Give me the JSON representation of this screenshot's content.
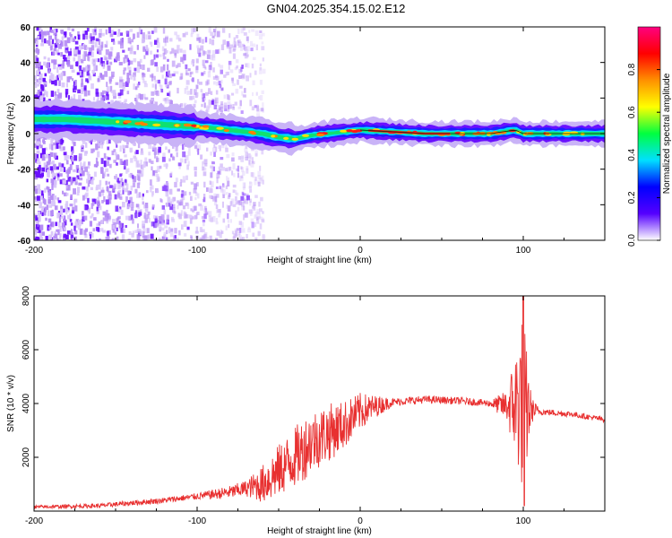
{
  "title": "GN04.2025.354.15.02.E12",
  "chart_data": [
    {
      "type": "heatmap",
      "name": "spectrogram",
      "xlabel": "Height of straight line (km)",
      "ylabel": "Frequency (Hz)",
      "xlim": [
        -200,
        150
      ],
      "ylim": [
        -60,
        60
      ],
      "xticks": [
        -200,
        -100,
        0,
        100
      ],
      "yticks": [
        60,
        40,
        20,
        0,
        -20,
        -40,
        -60
      ],
      "colorbar": {
        "label": "Normalized spectral amplitude",
        "range": [
          0,
          1
        ],
        "ticks": [
          0.0,
          0.2,
          0.4,
          0.6,
          0.8
        ],
        "tick_labels": [
          "0.0",
          "0.2",
          "0.4",
          "0.6",
          "0.8"
        ],
        "colors": [
          "#ffffff",
          "#5500ff",
          "#0000ff",
          "#00e0ff",
          "#00ff40",
          "#ffff00",
          "#ff9000",
          "#ff0000",
          "#ff0080"
        ]
      },
      "ridge_center_hz": [
        [
          -200,
          8
        ],
        [
          -180,
          8
        ],
        [
          -160,
          7
        ],
        [
          -140,
          6
        ],
        [
          -120,
          5
        ],
        [
          -100,
          4
        ],
        [
          -80,
          2
        ],
        [
          -60,
          0
        ],
        [
          -50,
          -2
        ],
        [
          -40,
          -3
        ],
        [
          -30,
          -1
        ],
        [
          -20,
          0
        ],
        [
          -10,
          1
        ],
        [
          0,
          2
        ],
        [
          20,
          1
        ],
        [
          40,
          0
        ],
        [
          60,
          0
        ],
        [
          80,
          0
        ],
        [
          95,
          2
        ],
        [
          100,
          0
        ],
        [
          120,
          0
        ],
        [
          150,
          0
        ]
      ],
      "noise_region_km": [
        -200,
        -60
      ]
    },
    {
      "type": "line",
      "name": "snr",
      "xlabel": "Height of straight line (km)",
      "ylabel": "SNR (10 * v/v)",
      "xlim": [
        -200,
        150
      ],
      "ylim": [
        0,
        8000
      ],
      "xticks": [
        -200,
        -100,
        0,
        100
      ],
      "yticks": [
        2000,
        4000,
        6000,
        8000
      ],
      "series": [
        {
          "name": "SNR",
          "color": "#e83030",
          "envelope": [
            [
              -200,
              150
            ],
            [
              -160,
              200
            ],
            [
              -120,
              400
            ],
            [
              -80,
              700
            ],
            [
              -60,
              1000
            ],
            [
              -50,
              1500
            ],
            [
              -40,
              2000
            ],
            [
              -30,
              2600
            ],
            [
              -20,
              2900
            ],
            [
              -10,
              3200
            ],
            [
              0,
              3700
            ],
            [
              10,
              3900
            ],
            [
              20,
              4050
            ],
            [
              40,
              4150
            ],
            [
              60,
              4100
            ],
            [
              80,
              4000
            ],
            [
              90,
              3900
            ],
            [
              95,
              3950
            ],
            [
              98,
              4100
            ],
            [
              102,
              3800
            ],
            [
              110,
              3700
            ],
            [
              130,
              3600
            ],
            [
              150,
              3400
            ]
          ],
          "noise_amplitude": [
            [
              -200,
              60
            ],
            [
              -100,
              120
            ],
            [
              -70,
              300
            ],
            [
              -55,
              900
            ],
            [
              -35,
              1200
            ],
            [
              -20,
              1100
            ],
            [
              0,
              700
            ],
            [
              10,
              400
            ],
            [
              20,
              150
            ],
            [
              80,
              130
            ],
            [
              90,
              600
            ],
            [
              100,
              3500
            ],
            [
              105,
              500
            ],
            [
              110,
              120
            ],
            [
              150,
              100
            ]
          ]
        }
      ]
    }
  ]
}
